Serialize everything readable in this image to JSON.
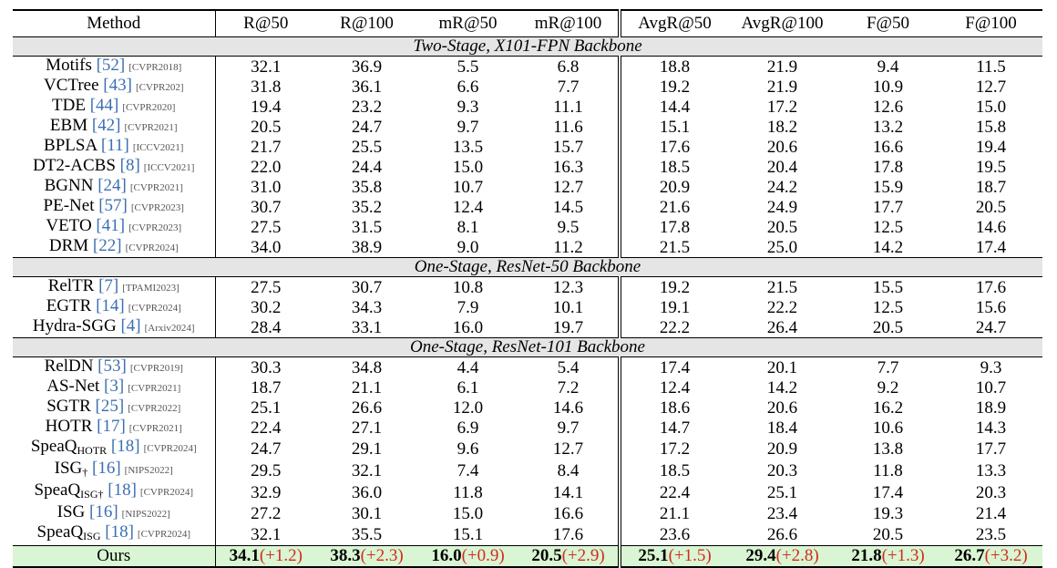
{
  "headers": [
    "Method",
    "R@50",
    "R@100",
    "mR@50",
    "mR@100",
    "AvgR@50",
    "AvgR@100",
    "F@50",
    "F@100"
  ],
  "sections": [
    {
      "title": "Two-Stage, X101-FPN Backbone",
      "rows": [
        {
          "name": "Motifs",
          "ref": "[52]",
          "venue": "[CVPR2018]",
          "values": [
            "32.1",
            "36.9",
            "5.5",
            "6.8",
            "18.8",
            "21.9",
            "9.4",
            "11.5"
          ]
        },
        {
          "name": "VCTree",
          "ref": "[43]",
          "venue": "[CVPR202]",
          "values": [
            "31.8",
            "36.1",
            "6.6",
            "7.7",
            "19.2",
            "21.9",
            "10.9",
            "12.7"
          ]
        },
        {
          "name": "TDE",
          "ref": "[44]",
          "venue": "[CVPR2020]",
          "values": [
            "19.4",
            "23.2",
            "9.3",
            "11.1",
            "14.4",
            "17.2",
            "12.6",
            "15.0"
          ]
        },
        {
          "name": "EBM",
          "ref": "[42]",
          "venue": "[CVPR2021]",
          "values": [
            "20.5",
            "24.7",
            "9.7",
            "11.6",
            "15.1",
            "18.2",
            "13.2",
            "15.8"
          ]
        },
        {
          "name": "BPLSA",
          "ref": "[11]",
          "venue": "[ICCV2021]",
          "values": [
            "21.7",
            "25.5",
            "13.5",
            "15.7",
            "17.6",
            "20.6",
            "16.6",
            "19.4"
          ]
        },
        {
          "name": "DT2-ACBS",
          "ref": "[8]",
          "venue": "[ICCV2021]",
          "values": [
            "22.0",
            "24.4",
            "15.0",
            "16.3",
            "18.5",
            "20.4",
            "17.8",
            "19.5"
          ]
        },
        {
          "name": "BGNN",
          "ref": "[24]",
          "venue": "[CVPR2021]",
          "values": [
            "31.0",
            "35.8",
            "10.7",
            "12.7",
            "20.9",
            "24.2",
            "15.9",
            "18.7"
          ]
        },
        {
          "name": "PE-Net",
          "ref": "[57]",
          "venue": "[CVPR2023]",
          "values": [
            "30.7",
            "35.2",
            "12.4",
            "14.5",
            "21.6",
            "24.9",
            "17.7",
            "20.5"
          ]
        },
        {
          "name": "VETO",
          "ref": "[41]",
          "venue": "[CVPR2023]",
          "values": [
            "27.5",
            "31.5",
            "8.1",
            "9.5",
            "17.8",
            "20.5",
            "12.5",
            "14.6"
          ]
        },
        {
          "name": "DRM",
          "ref": "[22]",
          "venue": "[CVPR2024]",
          "values": [
            "34.0",
            "38.9",
            "9.0",
            "11.2",
            "21.5",
            "25.0",
            "14.2",
            "17.4"
          ]
        }
      ]
    },
    {
      "title": "One-Stage, ResNet-50 Backbone",
      "rows": [
        {
          "name": "RelTR",
          "ref": "[7]",
          "venue": "[TPAMI2023]",
          "values": [
            "27.5",
            "30.7",
            "10.8",
            "12.3",
            "19.2",
            "21.5",
            "15.5",
            "17.6"
          ]
        },
        {
          "name": "EGTR",
          "ref": "[14]",
          "venue": "[CVPR2024]",
          "values": [
            "30.2",
            "34.3",
            "7.9",
            "10.1",
            "19.1",
            "22.2",
            "12.5",
            "15.6"
          ]
        },
        {
          "name": "Hydra-SGG",
          "ref": "[4]",
          "venue": "[Arxiv2024]",
          "values": [
            "28.4",
            "33.1",
            "16.0",
            "19.7",
            "22.2",
            "26.4",
            "20.5",
            "24.7"
          ]
        }
      ]
    },
    {
      "title": "One-Stage, ResNet-101 Backbone",
      "rows": [
        {
          "name": "RelDN",
          "ref": "[53]",
          "venue": "[CVPR2019]",
          "values": [
            "30.3",
            "34.8",
            "4.4",
            "5.4",
            "17.4",
            "20.1",
            "7.7",
            "9.3"
          ]
        },
        {
          "name": "AS-Net",
          "ref": "[3]",
          "venue": "[CVPR2021]",
          "values": [
            "18.7",
            "21.1",
            "6.1",
            "7.2",
            "12.4",
            "14.2",
            "9.2",
            "10.7"
          ]
        },
        {
          "name": "SGTR",
          "ref": "[25]",
          "venue": "[CVPR2022]",
          "values": [
            "25.1",
            "26.6",
            "12.0",
            "14.6",
            "18.6",
            "20.6",
            "16.2",
            "18.9"
          ]
        },
        {
          "name": "HOTR",
          "ref": "[17]",
          "venue": "[CVPR2021]",
          "values": [
            "22.4",
            "27.1",
            "6.9",
            "9.7",
            "14.7",
            "18.4",
            "10.6",
            "14.3"
          ]
        },
        {
          "name": "SpeaQ",
          "sub": "HOTR",
          "ref": "[18]",
          "venue": "[CVPR2024]",
          "values": [
            "24.7",
            "29.1",
            "9.6",
            "12.7",
            "17.2",
            "20.9",
            "13.8",
            "17.7"
          ]
        },
        {
          "name": "ISG",
          "sub": "†",
          "ref": "[16]",
          "venue": "[NIPS2022]",
          "values": [
            "29.5",
            "32.1",
            "7.4",
            "8.4",
            "18.5",
            "20.3",
            "11.8",
            "13.3"
          ]
        },
        {
          "name": "SpeaQ",
          "sub": "ISG†",
          "ref": "[18]",
          "venue": "[CVPR2024]",
          "values": [
            "32.9",
            "36.0",
            "11.8",
            "14.1",
            "22.4",
            "25.1",
            "17.4",
            "20.3"
          ]
        },
        {
          "name": "ISG",
          "ref": "[16]",
          "venue": "[NIPS2022]",
          "values": [
            "27.2",
            "30.1",
            "15.0",
            "16.6",
            "21.1",
            "23.4",
            "19.3",
            "21.4"
          ]
        },
        {
          "name": "SpeaQ",
          "sub": "ISG",
          "ref": "[18]",
          "venue": "[CVPR2024]",
          "values": [
            "32.1",
            "35.5",
            "15.1",
            "17.6",
            "23.6",
            "26.6",
            "20.5",
            "23.5"
          ]
        }
      ]
    }
  ],
  "ours": {
    "name": "Ours",
    "values": [
      "34.1",
      "38.3",
      "16.0",
      "20.5",
      "25.1",
      "29.4",
      "21.8",
      "26.7"
    ],
    "deltas": [
      "(+1.2)",
      "(+2.3)",
      "(+0.9)",
      "(+2.9)",
      "(+1.5)",
      "(+2.8)",
      "(+1.3)",
      "(+3.2)"
    ]
  },
  "colors": {
    "ref": "#3c6fb0",
    "delta": "#d62a1e",
    "ours_bg": "#d9f5d3",
    "section_bg": "#e5e5e5"
  }
}
